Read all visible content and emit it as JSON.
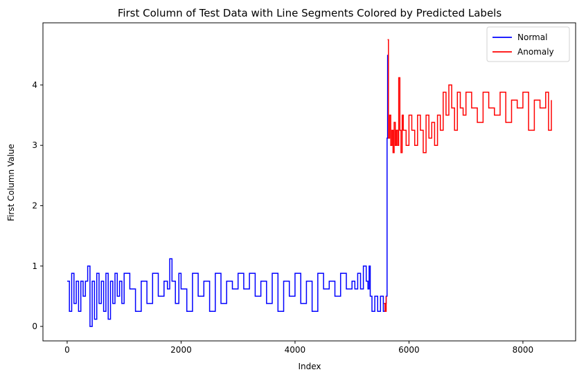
{
  "chart_data": {
    "type": "line",
    "title": "First Column of Test Data with Line Segments Colored by Predicted Labels",
    "xlabel": "Index",
    "ylabel": "First Column Value",
    "xlim": [
      -425,
      8925
    ],
    "ylim": [
      -0.24,
      5.03
    ],
    "xticks": [
      0,
      2000,
      4000,
      6000,
      8000
    ],
    "yticks": [
      0,
      1,
      2,
      3,
      4
    ],
    "grid": false,
    "legend_position": "top-right",
    "colors": {
      "normal": "#0000ff",
      "anomaly": "#ff0000"
    },
    "series": [
      {
        "name": "Normal",
        "color": "#0000ff",
        "segments": [
          {
            "x": [
              0,
              40,
              80,
              120,
              160,
              200,
              240,
              280,
              320,
              360,
              400,
              440,
              480,
              520,
              560,
              600,
              640,
              680,
              720,
              760,
              800,
              840,
              880,
              920,
              960,
              1000,
              1100,
              1200,
              1300,
              1400,
              1500,
              1600,
              1700,
              1760,
              1800,
              1840,
              1900,
              1960,
              2000,
              2100,
              2200,
              2300,
              2400,
              2500,
              2600,
              2700,
              2800,
              2900,
              3000,
              3100,
              3200,
              3300,
              3400,
              3500,
              3600,
              3700,
              3800,
              3900,
              4000,
              4100,
              4200,
              4300,
              4400,
              4500,
              4600,
              4700,
              4800,
              4900,
              5000,
              5050,
              5100,
              5150,
              5200,
              5250,
              5280,
              5300,
              5320,
              5350,
              5400,
              5450,
              5500,
              5550,
              5580,
              5600,
              5615,
              5625
            ],
            "y": [
              0.75,
              0.25,
              0.88,
              0.38,
              0.75,
              0.25,
              0.75,
              0.5,
              0.75,
              1.0,
              0.0,
              0.75,
              0.12,
              0.88,
              0.38,
              0.75,
              0.25,
              0.88,
              0.12,
              0.75,
              0.38,
              0.88,
              0.5,
              0.75,
              0.38,
              0.88,
              0.62,
              0.25,
              0.75,
              0.38,
              0.88,
              0.5,
              0.75,
              0.62,
              1.12,
              0.75,
              0.38,
              0.88,
              0.62,
              0.25,
              0.88,
              0.5,
              0.75,
              0.25,
              0.88,
              0.38,
              0.75,
              0.62,
              0.88,
              0.62,
              0.88,
              0.5,
              0.75,
              0.38,
              0.88,
              0.25,
              0.75,
              0.5,
              0.88,
              0.38,
              0.75,
              0.25,
              0.88,
              0.62,
              0.75,
              0.5,
              0.88,
              0.62,
              0.75,
              0.62,
              0.88,
              0.62,
              1.0,
              0.75,
              0.62,
              1.0,
              0.5,
              0.25,
              0.5,
              0.25,
              0.5,
              0.25,
              0.38,
              0.5,
              3.12,
              4.5
            ]
          }
        ]
      },
      {
        "name": "Anomaly",
        "color": "#ff0000",
        "segments": [
          {
            "x": [
              5560,
              5580,
              5600
            ],
            "y": [
              0.38,
              0.25,
              0.5
            ]
          },
          {
            "x": [
              5625,
              5640,
              5660,
              5680,
              5700,
              5720,
              5740,
              5760,
              5780,
              5800,
              5820,
              5840,
              5860,
              5880,
              5900,
              5950,
              6000,
              6050,
              6100,
              6150,
              6200,
              6250,
              6300,
              6350,
              6400,
              6450,
              6500,
              6550,
              6600,
              6650,
              6700,
              6750,
              6800,
              6850,
              6900,
              6950,
              7000,
              7100,
              7200,
              7300,
              7400,
              7500,
              7600,
              7700,
              7800,
              7900,
              8000,
              8100,
              8200,
              8300,
              8400,
              8450,
              8500
            ],
            "y": [
              4.75,
              3.12,
              3.5,
              3.0,
              3.25,
              2.88,
              3.38,
              3.0,
              3.25,
              3.0,
              4.12,
              3.25,
              2.88,
              3.5,
              3.25,
              3.0,
              3.5,
              3.25,
              3.0,
              3.5,
              3.25,
              2.88,
              3.5,
              3.12,
              3.38,
              3.0,
              3.5,
              3.25,
              3.88,
              3.5,
              4.0,
              3.62,
              3.25,
              3.88,
              3.62,
              3.5,
              3.88,
              3.62,
              3.38,
              3.88,
              3.62,
              3.5,
              3.88,
              3.38,
              3.75,
              3.62,
              3.88,
              3.25,
              3.75,
              3.62,
              3.88,
              3.25,
              3.75
            ]
          }
        ]
      }
    ]
  }
}
